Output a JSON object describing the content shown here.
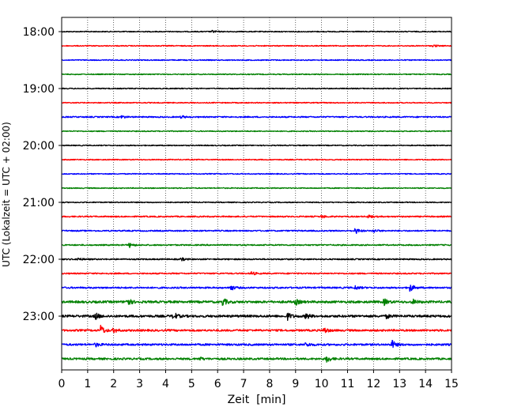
{
  "chart_data": {
    "type": "line",
    "title": "",
    "xlabel": "Zeit  [min]",
    "ylabel": "UTC (Lokalzeit = UTC + 02:00)",
    "xlim": [
      0,
      15
    ],
    "x_ticks": [
      0,
      1,
      2,
      3,
      4,
      5,
      6,
      7,
      8,
      9,
      10,
      11,
      12,
      13,
      14,
      15
    ],
    "x_tick_labels": [
      "0",
      "1",
      "2",
      "3",
      "4",
      "5",
      "6",
      "7",
      "8",
      "9",
      "10",
      "11",
      "12",
      "13",
      "14",
      "15"
    ],
    "y_tick_labels": [
      "18:00",
      "19:00",
      "20:00",
      "21:00",
      "22:00",
      "23:00"
    ],
    "grid": "vertical-dotted",
    "trace_interval_min": 15,
    "color_cycle": [
      "#000000",
      "#ff0000",
      "#0000ff",
      "#008000"
    ],
    "traces": [
      {
        "start": "18:00",
        "color": "#000000",
        "noise": 0.6,
        "events": [
          [
            5.8,
            1.5
          ]
        ]
      },
      {
        "start": "18:15",
        "color": "#ff0000",
        "noise": 0.6,
        "events": [
          [
            14.3,
            1.5
          ]
        ]
      },
      {
        "start": "18:30",
        "color": "#0000ff",
        "noise": 0.6,
        "events": []
      },
      {
        "start": "18:45",
        "color": "#008000",
        "noise": 0.6,
        "events": []
      },
      {
        "start": "19:00",
        "color": "#000000",
        "noise": 0.6,
        "events": []
      },
      {
        "start": "19:15",
        "color": "#ff0000",
        "noise": 0.6,
        "events": []
      },
      {
        "start": "19:30",
        "color": "#0000ff",
        "noise": 0.8,
        "events": [
          [
            2.3,
            2.0
          ],
          [
            4.6,
            1.8
          ]
        ]
      },
      {
        "start": "19:45",
        "color": "#008000",
        "noise": 0.6,
        "events": []
      },
      {
        "start": "20:00",
        "color": "#000000",
        "noise": 0.6,
        "events": []
      },
      {
        "start": "20:15",
        "color": "#ff0000",
        "noise": 0.6,
        "events": []
      },
      {
        "start": "20:30",
        "color": "#0000ff",
        "noise": 0.6,
        "events": []
      },
      {
        "start": "20:45",
        "color": "#008000",
        "noise": 0.6,
        "events": []
      },
      {
        "start": "21:00",
        "color": "#000000",
        "noise": 0.6,
        "events": []
      },
      {
        "start": "21:15",
        "color": "#ff0000",
        "noise": 0.8,
        "events": [
          [
            10.0,
            2.0
          ],
          [
            11.8,
            2.0
          ]
        ]
      },
      {
        "start": "21:30",
        "color": "#0000ff",
        "noise": 0.8,
        "events": [
          [
            11.3,
            4.0
          ],
          [
            12.0,
            2.0
          ]
        ]
      },
      {
        "start": "21:45",
        "color": "#008000",
        "noise": 0.8,
        "events": [
          [
            2.6,
            3.0
          ]
        ]
      },
      {
        "start": "22:00",
        "color": "#000000",
        "noise": 0.8,
        "events": [
          [
            0.6,
            2.0
          ],
          [
            4.6,
            2.0
          ]
        ]
      },
      {
        "start": "22:15",
        "color": "#ff0000",
        "noise": 0.8,
        "events": [
          [
            7.3,
            2.5
          ]
        ]
      },
      {
        "start": "22:30",
        "color": "#0000ff",
        "noise": 1.0,
        "events": [
          [
            6.5,
            3.5
          ],
          [
            11.3,
            2.5
          ],
          [
            13.4,
            5.0
          ]
        ]
      },
      {
        "start": "22:45",
        "color": "#008000",
        "noise": 1.4,
        "events": [
          [
            2.5,
            6.0
          ],
          [
            6.2,
            5.0
          ],
          [
            9.0,
            3.5
          ],
          [
            12.4,
            4.0
          ],
          [
            13.5,
            3.0
          ]
        ]
      },
      {
        "start": "23:00",
        "color": "#000000",
        "noise": 1.4,
        "events": [
          [
            1.3,
            4.0
          ],
          [
            4.3,
            5.0
          ],
          [
            8.7,
            4.5
          ],
          [
            9.4,
            4.0
          ],
          [
            12.5,
            2.5
          ]
        ]
      },
      {
        "start": "23:15",
        "color": "#ff0000",
        "noise": 1.2,
        "events": [
          [
            1.5,
            6.5
          ],
          [
            2.0,
            3.0
          ],
          [
            10.1,
            4.0
          ]
        ]
      },
      {
        "start": "23:30",
        "color": "#0000ff",
        "noise": 1.2,
        "events": [
          [
            1.3,
            2.5
          ],
          [
            9.4,
            3.0
          ],
          [
            12.7,
            5.5
          ]
        ]
      },
      {
        "start": "23:45",
        "color": "#008000",
        "noise": 1.2,
        "events": [
          [
            5.3,
            2.0
          ],
          [
            10.2,
            4.5
          ]
        ]
      }
    ]
  }
}
